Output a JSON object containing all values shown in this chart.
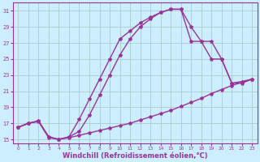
{
  "background_color": "#cceeff",
  "grid_color": "#aacccc",
  "line_color": "#993399",
  "marker": "*",
  "marker_size": 3,
  "line_width": 1.0,
  "xlim": [
    -0.5,
    23.5
  ],
  "ylim": [
    14.5,
    32
  ],
  "xlabel": "Windchill (Refroidissement éolien,°C)",
  "xlabel_fontsize": 6,
  "yticks": [
    15,
    17,
    19,
    21,
    23,
    25,
    27,
    29,
    31
  ],
  "xticks": [
    0,
    1,
    2,
    3,
    4,
    5,
    6,
    7,
    8,
    9,
    10,
    11,
    12,
    13,
    14,
    15,
    16,
    17,
    18,
    19,
    20,
    21,
    22,
    23
  ],
  "curve1_x": [
    0,
    1,
    2,
    3,
    4,
    5,
    6,
    7,
    8,
    9,
    10,
    11,
    12,
    13,
    14,
    15,
    16,
    17,
    18,
    19,
    20,
    21,
    22,
    23
  ],
  "curve1_y": [
    16.5,
    17.0,
    17.2,
    15.2,
    15.0,
    15.2,
    15.5,
    15.8,
    16.1,
    16.4,
    16.7,
    17.0,
    17.4,
    17.8,
    18.2,
    18.6,
    19.1,
    19.6,
    20.1,
    20.7,
    21.2,
    21.7,
    22.1,
    22.5
  ],
  "curve2_x": [
    0,
    1,
    2,
    3,
    4,
    5,
    6,
    7,
    8,
    9,
    10,
    11,
    12,
    13,
    14,
    15,
    16,
    17,
    18,
    19,
    20,
    21,
    22,
    23
  ],
  "curve2_y": [
    16.5,
    17.0,
    17.3,
    15.3,
    15.0,
    15.3,
    17.5,
    20.0,
    22.5,
    25.0,
    27.5,
    28.5,
    29.5,
    30.2,
    30.8,
    31.2,
    31.2,
    27.2,
    27.2,
    27.2,
    25.0,
    22.0,
    22.0,
    22.5
  ],
  "curve3_x": [
    0,
    1,
    2,
    3,
    4,
    5,
    6,
    7,
    8,
    9,
    10,
    11,
    12,
    13,
    14,
    15,
    16,
    17,
    18,
    19,
    20,
    21,
    22,
    23
  ],
  "curve3_y": [
    16.5,
    17.0,
    17.3,
    15.3,
    15.0,
    15.3,
    16.0,
    18.0,
    20.5,
    23.0,
    25.5,
    27.5,
    29.0,
    30.0,
    30.8,
    31.2,
    31.2,
    29.0,
    27.2,
    25.0,
    25.0,
    22.0,
    22.2,
    22.5
  ]
}
